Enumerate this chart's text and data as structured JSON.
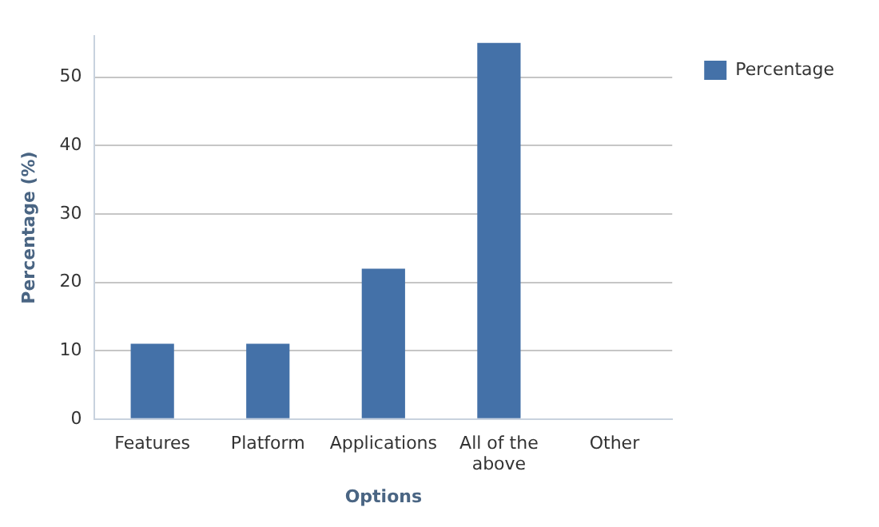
{
  "chart_data": {
    "type": "bar",
    "xlabel": "Options",
    "ylabel": "Percentage (%)",
    "categories": [
      "Features",
      "Platform",
      "Applications",
      "All of the above",
      "Other"
    ],
    "series": [
      {
        "name": "Percentage",
        "color": "#4471a8",
        "values": [
          11,
          11,
          22,
          55,
          0
        ]
      }
    ],
    "ylim": [
      0,
      56
    ],
    "yticks": [
      0,
      10,
      20,
      30,
      40,
      50
    ],
    "grid": "y",
    "legend": "right"
  }
}
